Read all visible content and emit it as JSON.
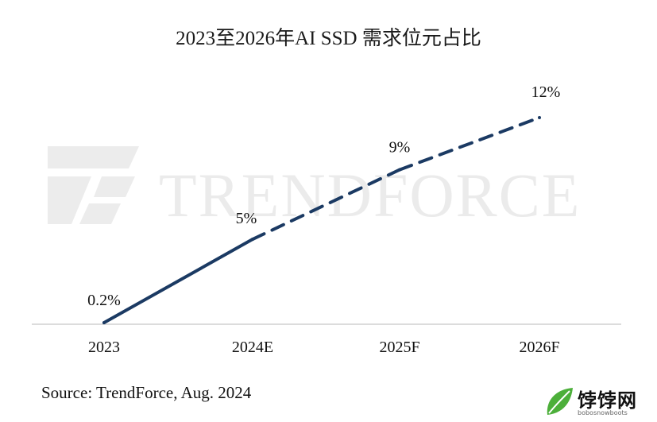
{
  "chart_data": {
    "type": "line",
    "title": "2023至2026年AI SSD 需求位元占比",
    "categories": [
      "2023",
      "2024E",
      "2025F",
      "2026F"
    ],
    "series": [
      {
        "values": [
          0.2,
          5,
          9,
          12
        ],
        "data_labels": [
          "0.2%",
          "5%",
          "9%",
          "12%"
        ],
        "line_style": [
          "solid",
          "dashed",
          "dashed"
        ],
        "color": "#1b3a63"
      }
    ],
    "xlabel": "",
    "ylabel": "",
    "ylim": [
      0,
      13
    ],
    "grid": false,
    "legend": "none",
    "y_axis_visible": false
  },
  "source": "Source: TrendForce, Aug. 2024",
  "watermark": {
    "logo_text": "TRENDFORCE",
    "site_name": "饽饽网",
    "site_sub": "bobosnowboots"
  },
  "colors": {
    "line": "#1b3a63",
    "axis": "#d0d0d0",
    "watermark": "#e9e9e9",
    "site_leaf": "#4caf3a"
  }
}
